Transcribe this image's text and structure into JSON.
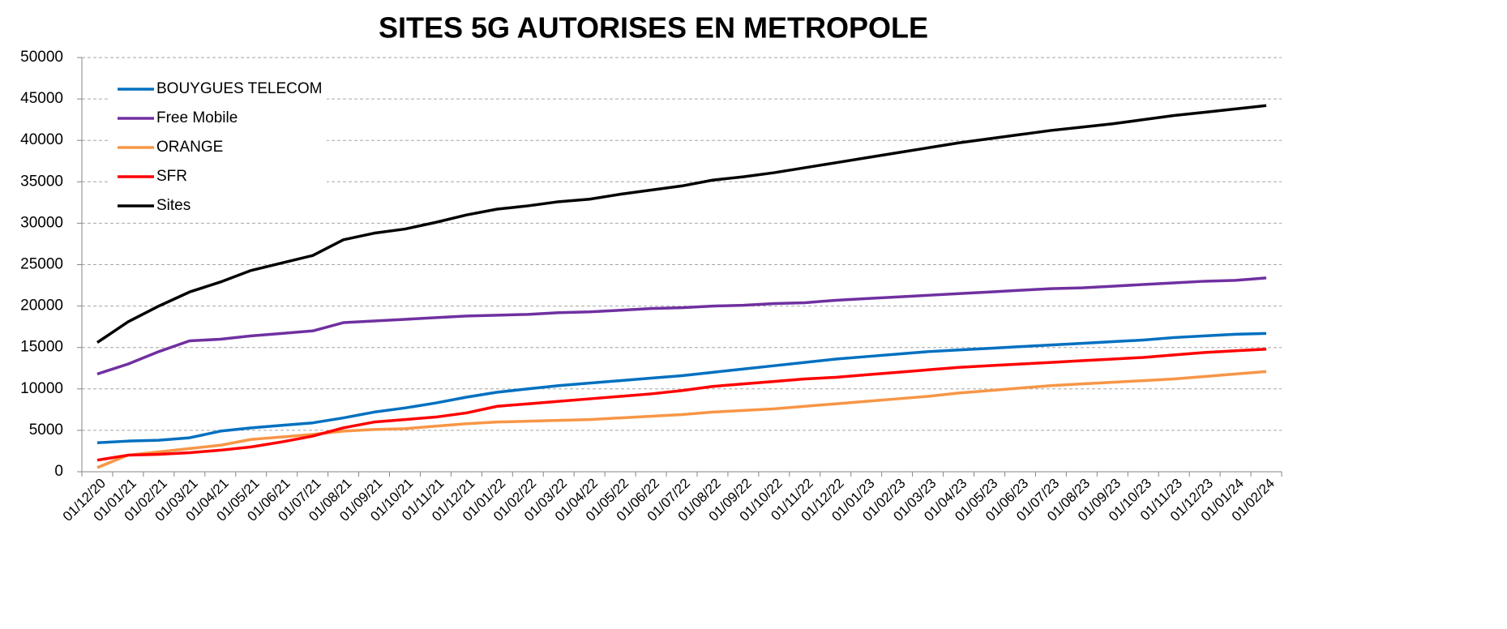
{
  "chart_data": {
    "type": "line",
    "title": "SITES 5G AUTORISES EN METROPOLE",
    "categories": [
      "01/12/20",
      "01/01/21",
      "01/02/21",
      "01/03/21",
      "01/04/21",
      "01/05/21",
      "01/06/21",
      "01/07/21",
      "01/08/21",
      "01/09/21",
      "01/10/21",
      "01/11/21",
      "01/12/21",
      "01/01/22",
      "01/02/22",
      "01/03/22",
      "01/04/22",
      "01/05/22",
      "01/06/22",
      "01/07/22",
      "01/08/22",
      "01/09/22",
      "01/10/22",
      "01/11/22",
      "01/12/22",
      "01/01/23",
      "01/02/23",
      "01/03/23",
      "01/04/23",
      "01/05/23",
      "01/06/23",
      "01/07/23",
      "01/08/23",
      "01/09/23",
      "01/10/23",
      "01/11/23",
      "01/12/23",
      "01/01/24",
      "01/02/24"
    ],
    "series": [
      {
        "name": "BOUYGUES TELECOM",
        "color": "#0070c0",
        "values": [
          3500,
          3700,
          3800,
          4100,
          4900,
          5300,
          5600,
          5900,
          6500,
          7200,
          7700,
          8300,
          9000,
          9600,
          10000,
          10400,
          10700,
          11000,
          11300,
          11600,
          12000,
          12400,
          12800,
          13200,
          13600,
          13900,
          14200,
          14500,
          14700,
          14900,
          15100,
          15300,
          15500,
          15700,
          15900,
          16200,
          16400,
          16600,
          16700
        ]
      },
      {
        "name": "Free Mobile",
        "color": "#7030a0",
        "values": [
          11800,
          13000,
          14500,
          15800,
          16000,
          16400,
          16700,
          17000,
          18000,
          18200,
          18400,
          18600,
          18800,
          18900,
          19000,
          19200,
          19300,
          19500,
          19700,
          19800,
          20000,
          20100,
          20300,
          20400,
          20700,
          20900,
          21100,
          21300,
          21500,
          21700,
          21900,
          22100,
          22200,
          22400,
          22600,
          22800,
          23000,
          23100,
          23400
        ]
      },
      {
        "name": "ORANGE",
        "color": "#f79646",
        "values": [
          500,
          2000,
          2400,
          2800,
          3200,
          3900,
          4200,
          4500,
          4900,
          5100,
          5200,
          5500,
          5800,
          6000,
          6100,
          6200,
          6300,
          6500,
          6700,
          6900,
          7200,
          7400,
          7600,
          7900,
          8200,
          8500,
          8800,
          9100,
          9500,
          9800,
          10100,
          10400,
          10600,
          10800,
          11000,
          11200,
          11500,
          11800,
          12100
        ]
      },
      {
        "name": "SFR",
        "color": "#ff0000",
        "values": [
          1400,
          2000,
          2100,
          2300,
          2600,
          3000,
          3600,
          4300,
          5300,
          6000,
          6300,
          6600,
          7100,
          7900,
          8200,
          8500,
          8800,
          9100,
          9400,
          9800,
          10300,
          10600,
          10900,
          11200,
          11400,
          11700,
          12000,
          12300,
          12600,
          12800,
          13000,
          13200,
          13400,
          13600,
          13800,
          14100,
          14400,
          14600,
          14800
        ]
      },
      {
        "name": "Sites",
        "color": "#000000",
        "values": [
          15600,
          18100,
          20000,
          21700,
          22900,
          24300,
          25200,
          26100,
          28000,
          28800,
          29300,
          30100,
          31000,
          31700,
          32100,
          32600,
          32900,
          33500,
          34000,
          34500,
          35200,
          35600,
          36100,
          36700,
          37300,
          37900,
          38500,
          39100,
          39700,
          40200,
          40700,
          41200,
          41600,
          42000,
          42500,
          43000,
          43400,
          43800,
          44200
        ]
      }
    ],
    "ylim": [
      0,
      50000
    ],
    "yticks": [
      0,
      5000,
      10000,
      15000,
      20000,
      25000,
      30000,
      35000,
      40000,
      45000,
      50000
    ],
    "grid": true,
    "legend": "upper left"
  }
}
